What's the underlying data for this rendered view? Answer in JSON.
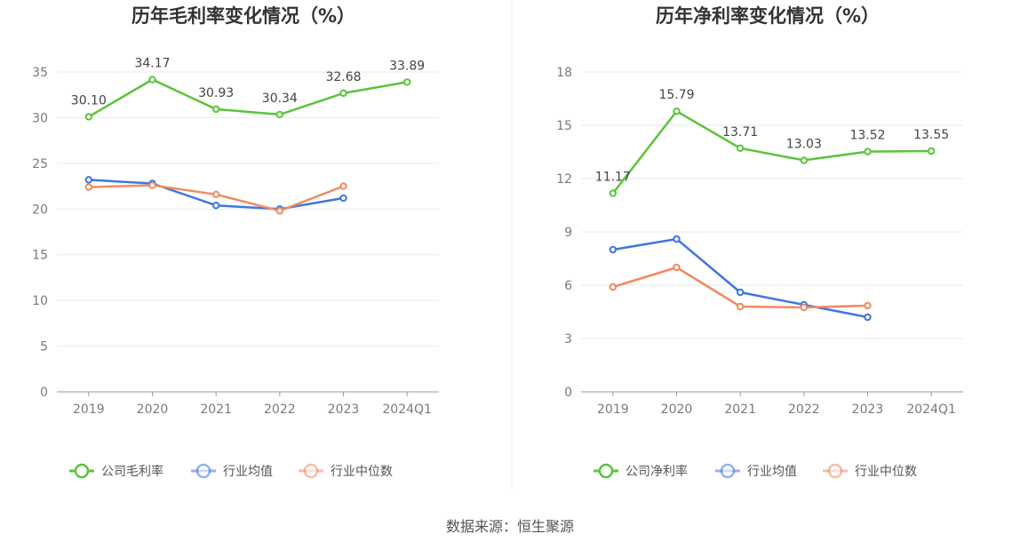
{
  "source_text": "数据来源：恒生聚源",
  "colors": {
    "company": "#5ac43b",
    "avg": "#3f76e0",
    "median": "#f08a62",
    "grid": "#e6eaf2",
    "axis": "#999999"
  },
  "chart_data": [
    {
      "type": "line",
      "title": "历年毛利率变化情况（%）",
      "categories": [
        "2019",
        "2020",
        "2021",
        "2022",
        "2023",
        "2024Q1"
      ],
      "ylim": [
        0,
        35
      ],
      "yticks": [
        0,
        5,
        10,
        15,
        20,
        25,
        30,
        35
      ],
      "grid": true,
      "legend": "bottom",
      "series": [
        {
          "name": "公司毛利率",
          "role": "company",
          "values": [
            30.1,
            34.17,
            30.93,
            30.34,
            32.68,
            33.89
          ],
          "labels": [
            "30.10",
            "34.17",
            "30.93",
            "30.34",
            "32.68",
            "33.89"
          ]
        },
        {
          "name": "行业均值",
          "role": "avg",
          "values": [
            23.2,
            22.8,
            20.4,
            20.0,
            21.2,
            null
          ]
        },
        {
          "name": "行业中位数",
          "role": "median",
          "values": [
            22.4,
            22.6,
            21.6,
            19.8,
            22.5,
            null
          ]
        }
      ]
    },
    {
      "type": "line",
      "title": "历年净利率变化情况（%）",
      "categories": [
        "2019",
        "2020",
        "2021",
        "2022",
        "2023",
        "2024Q1"
      ],
      "ylim": [
        0,
        18
      ],
      "yticks": [
        0,
        3,
        6,
        9,
        12,
        15,
        18
      ],
      "grid": true,
      "legend": "bottom",
      "series": [
        {
          "name": "公司净利率",
          "role": "company",
          "values": [
            11.17,
            15.79,
            13.71,
            13.03,
            13.52,
            13.55
          ],
          "labels": [
            "11.17",
            "15.79",
            "13.71",
            "13.03",
            "13.52",
            "13.55"
          ]
        },
        {
          "name": "行业均值",
          "role": "avg",
          "values": [
            8.0,
            8.6,
            5.6,
            4.9,
            4.2,
            null
          ]
        },
        {
          "name": "行业中位数",
          "role": "median",
          "values": [
            5.9,
            7.0,
            4.8,
            4.75,
            4.85,
            null
          ]
        }
      ]
    }
  ]
}
